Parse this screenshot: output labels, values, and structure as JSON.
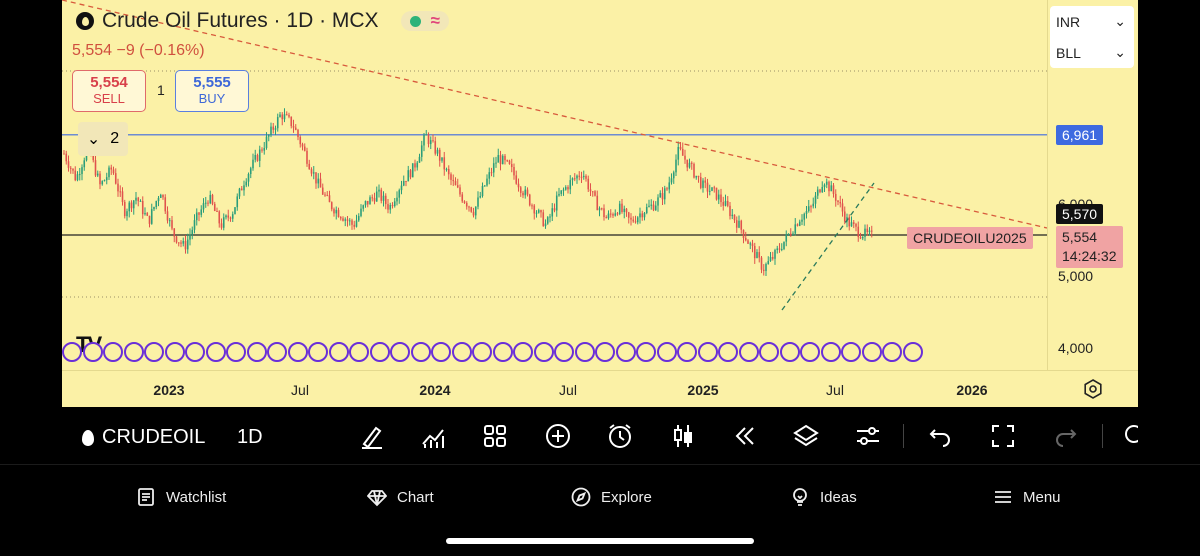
{
  "header": {
    "title": "Crude Oil Futures · 1D · MCX",
    "price_change": "5,554  −9 (−0.16%)"
  },
  "trade": {
    "sell_value": "5,554",
    "sell_label": "SELL",
    "buy_value": "5,555",
    "buy_label": "BUY",
    "spread": "1"
  },
  "collapse_count": "2",
  "logo_text": "TV",
  "selectors": {
    "currency": "INR",
    "unit": "BLL"
  },
  "price_axis": {
    "labels": [
      {
        "text": "6,000",
        "value": 6000
      },
      {
        "text": "5,000",
        "value": 5000
      },
      {
        "text": "4,000",
        "value": 4000
      }
    ],
    "tag_blue": "6,961",
    "tag_black": "5,570",
    "tag_price": "5,554",
    "tag_countdown": "14:24:32",
    "symbol_label": "CRUDEOILU2025"
  },
  "time_axis": {
    "labels": [
      {
        "text": "2023",
        "year": true
      },
      {
        "text": "Jul",
        "year": false
      },
      {
        "text": "2024",
        "year": true
      },
      {
        "text": "Jul",
        "year": false
      },
      {
        "text": "2025",
        "year": true
      },
      {
        "text": "Jul",
        "year": false
      },
      {
        "text": "2026",
        "year": true
      }
    ]
  },
  "toolbar": {
    "symbol": "CRUDEOIL",
    "interval": "1D"
  },
  "nav": {
    "watchlist": "Watchlist",
    "chart": "Chart",
    "explore": "Explore",
    "ideas": "Ideas",
    "menu": "Menu"
  },
  "colors": {
    "chart_bg": "#fbf1a6",
    "up": "#2a9d7a",
    "down": "#e0524c",
    "horizontal_line": "#3e6ae0",
    "trend_dash": "#d85a3c",
    "events": "#6a2fd8"
  },
  "chart_data": {
    "type": "candlestick",
    "y_axis_ticks": [
      6000,
      5000,
      4000
    ],
    "x_axis_ticks": [
      "2023",
      "Jul",
      "2024",
      "Jul",
      "2025",
      "Jul",
      "2026"
    ],
    "horizontal_lines": [
      6961,
      5554
    ],
    "close_series_approx": [
      6700,
      6350,
      6800,
      6250,
      6500,
      5900,
      6100,
      5750,
      6200,
      5600,
      5400,
      5800,
      6100,
      5700,
      5900,
      6350,
      6650,
      6950,
      7250,
      7100,
      6700,
      6300,
      6000,
      5850,
      5700,
      6000,
      6150,
      5950,
      6300,
      6500,
      6950,
      6700,
      6350,
      6100,
      5900,
      6300,
      6650,
      6500,
      6200,
      5950,
      5700,
      6100,
      6300,
      6450,
      6050,
      5800,
      5950,
      5750,
      5900,
      6000,
      6200,
      6750,
      6500,
      6250,
      6150,
      5950,
      5700,
      5400,
      5100,
      5300,
      5550,
      5800,
      5950,
      6350,
      6100,
      5750,
      5600,
      5554
    ]
  }
}
